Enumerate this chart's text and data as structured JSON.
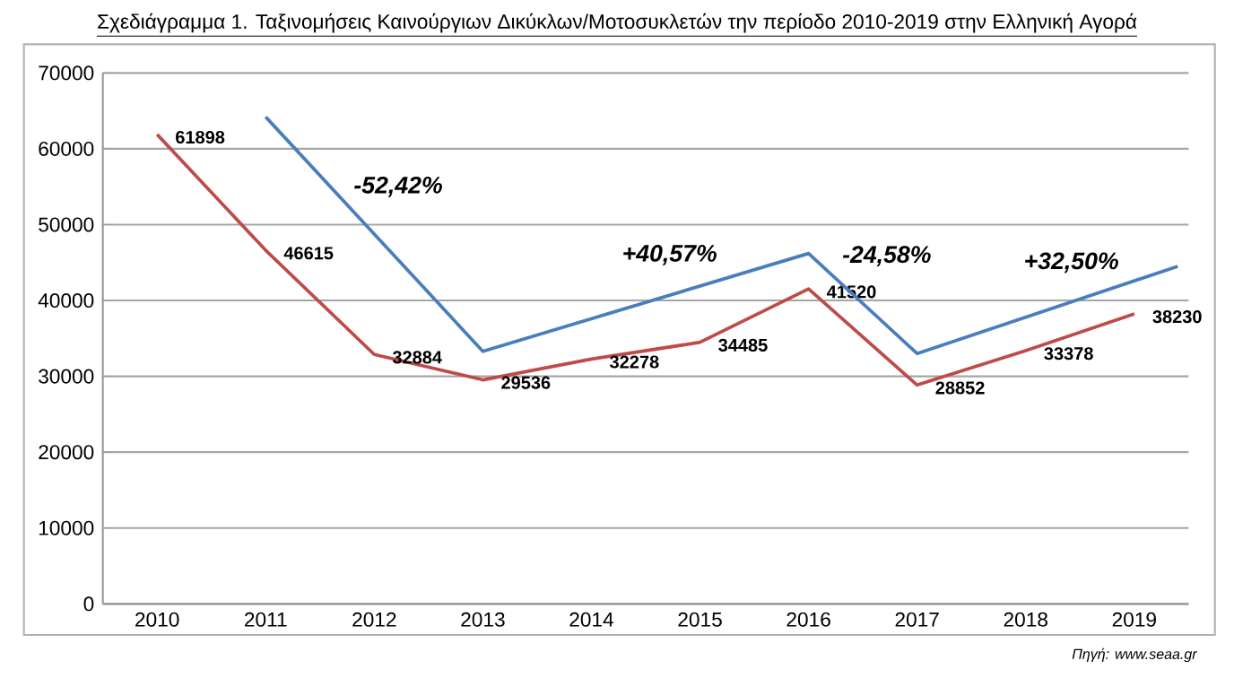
{
  "chart_data": {
    "type": "line",
    "title": "Σχεδιάγραμμα 1. Ταξινομήσεις Καινούργιων Δικύκλων/Μοτοσυκλετών την περίοδο 2010-2019 στην Ελληνική Αγορά",
    "x": [
      2010,
      2011,
      2012,
      2013,
      2014,
      2015,
      2016,
      2017,
      2018,
      2019
    ],
    "series": [
      {
        "color": "#be4b48",
        "data_labels": true,
        "values": [
          61898,
          46615,
          32884,
          29536,
          32278,
          34485,
          41520,
          28852,
          33378,
          38230
        ]
      },
      {
        "color": "#4a7ebb",
        "x": [
          2011,
          2013,
          2016,
          2017,
          2019.4
        ],
        "values": [
          64200,
          33300,
          46200,
          33000,
          44500
        ]
      }
    ],
    "xlim": [
      2009.5,
      2019.5
    ],
    "xticks": [
      2010,
      2011,
      2012,
      2013,
      2014,
      2015,
      2016,
      2017,
      2018,
      2019
    ],
    "ylim": [
      0,
      70000
    ],
    "yticks": [
      0,
      10000,
      20000,
      30000,
      40000,
      50000,
      60000,
      70000
    ],
    "grid": "y",
    "marker": "none",
    "line_style": "solid",
    "annotations": [
      "-52,42%",
      "+40,57%",
      "-24,58%",
      "+32,50%",
      "Πηγή: www.seaa.gr"
    ]
  }
}
